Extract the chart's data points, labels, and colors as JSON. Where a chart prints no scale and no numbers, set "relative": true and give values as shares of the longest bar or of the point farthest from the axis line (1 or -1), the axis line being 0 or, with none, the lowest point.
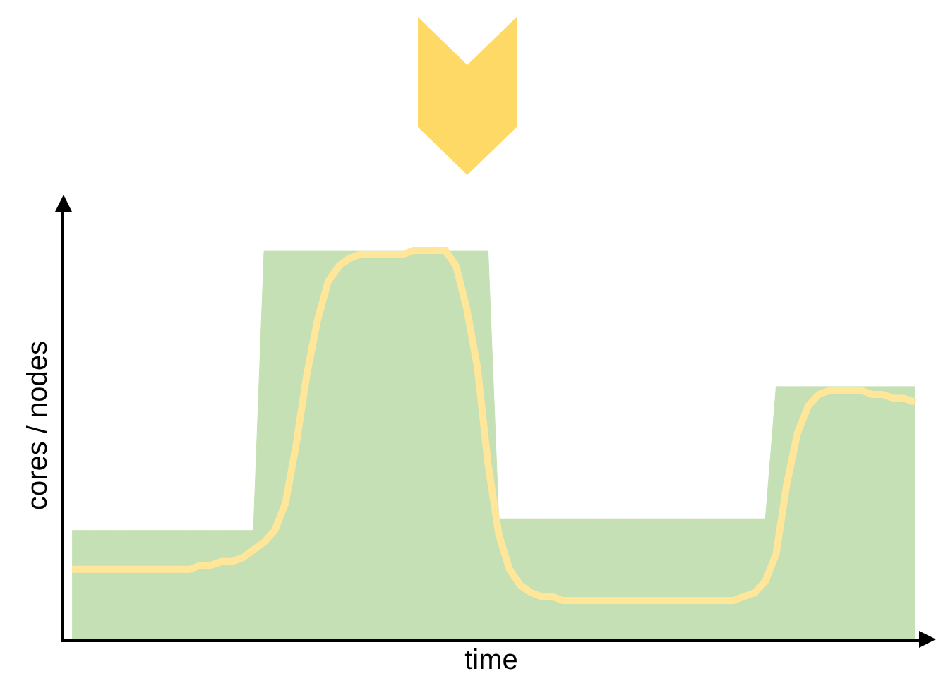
{
  "chart_data": {
    "type": "line",
    "relative": true,
    "xlabel": "time",
    "ylabel": "cores / nodes",
    "grid": false,
    "categories": [
      null,
      null,
      null,
      null,
      null,
      null,
      null,
      null,
      null,
      null,
      null,
      null,
      null,
      null,
      null,
      null,
      null,
      null,
      null,
      null,
      null,
      null,
      null,
      null,
      null,
      null,
      null,
      null,
      null,
      null,
      null,
      null,
      null,
      null,
      null,
      null,
      null,
      null,
      null,
      null,
      null,
      null,
      null,
      null,
      null,
      null,
      null,
      null,
      null,
      null,
      null,
      null,
      null,
      null,
      null,
      null,
      null,
      null,
      null,
      null,
      null,
      null,
      null,
      null,
      null,
      null,
      null,
      null,
      null,
      null,
      null,
      null,
      null,
      null,
      null,
      null,
      null,
      null,
      null,
      null
    ],
    "series": [
      {
        "type": "area",
        "color": "#c5e0b4",
        "values": [
          0.28,
          0.28,
          0.28,
          0.28,
          0.28,
          0.28,
          0.28,
          0.28,
          0.28,
          0.28,
          0.28,
          0.28,
          0.28,
          0.28,
          0.28,
          0.28,
          0.28,
          0.28,
          1.0,
          1.0,
          1.0,
          1.0,
          1.0,
          1.0,
          1.0,
          1.0,
          1.0,
          1.0,
          1.0,
          1.0,
          1.0,
          1.0,
          1.0,
          1.0,
          1.0,
          1.0,
          1.0,
          1.0,
          1.0,
          1.0,
          0.31,
          0.31,
          0.31,
          0.31,
          0.31,
          0.31,
          0.31,
          0.31,
          0.31,
          0.31,
          0.31,
          0.31,
          0.31,
          0.31,
          0.31,
          0.31,
          0.31,
          0.31,
          0.31,
          0.31,
          0.31,
          0.31,
          0.31,
          0.31,
          0.31,
          0.31,
          0.65,
          0.65,
          0.65,
          0.65,
          0.65,
          0.65,
          0.65,
          0.65,
          0.65,
          0.65,
          0.65,
          0.65,
          0.65,
          0.65
        ]
      },
      {
        "color": "#ffe699",
        "values": [
          0.18,
          0.18,
          0.18,
          0.18,
          0.18,
          0.18,
          0.18,
          0.18,
          0.18,
          0.18,
          0.18,
          0.18,
          0.19,
          0.19,
          0.2,
          0.2,
          0.21,
          0.23,
          0.25,
          0.28,
          0.35,
          0.5,
          0.68,
          0.82,
          0.92,
          0.96,
          0.98,
          0.99,
          0.99,
          0.99,
          0.99,
          0.99,
          1.0,
          1.0,
          1.0,
          1.0,
          0.96,
          0.85,
          0.7,
          0.45,
          0.27,
          0.18,
          0.14,
          0.12,
          0.11,
          0.11,
          0.1,
          0.1,
          0.1,
          0.1,
          0.1,
          0.1,
          0.1,
          0.1,
          0.1,
          0.1,
          0.1,
          0.1,
          0.1,
          0.1,
          0.1,
          0.1,
          0.1,
          0.11,
          0.12,
          0.15,
          0.22,
          0.4,
          0.53,
          0.6,
          0.63,
          0.64,
          0.64,
          0.64,
          0.64,
          0.63,
          0.63,
          0.62,
          0.62,
          0.61
        ]
      }
    ]
  }
}
